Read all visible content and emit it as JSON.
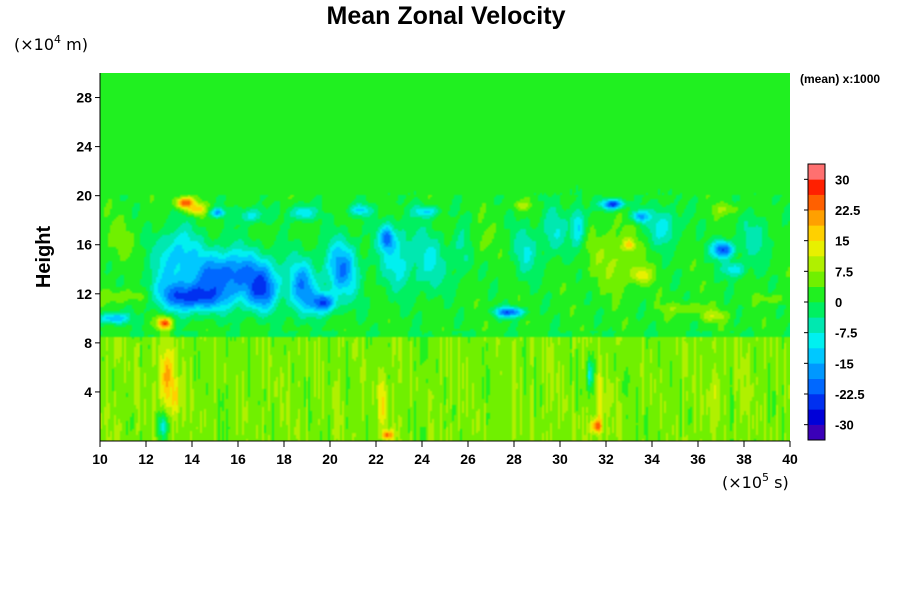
{
  "chart_data": {
    "type": "heatmap",
    "title": "Mean Zonal Velocity",
    "ylabel": "Height",
    "y_unit_prefix": "(×10",
    "y_unit_exp": "4",
    "y_unit_suffix": " m)",
    "x_unit_prefix": "(×10",
    "x_unit_exp": "5",
    "x_unit_suffix": " s)",
    "xlim": [
      10,
      40
    ],
    "ylim": [
      0,
      30
    ],
    "x_ticks": [
      "10",
      "12",
      "14",
      "16",
      "18",
      "20",
      "22",
      "24",
      "26",
      "28",
      "30",
      "32",
      "34",
      "36",
      "38",
      "40"
    ],
    "y_ticks": [
      "4",
      "8",
      "12",
      "16",
      "20",
      "24",
      "28"
    ],
    "colorbar": {
      "note": "(mean) x:1000",
      "range": [
        -33.75,
        33.75
      ],
      "labels": [
        "30",
        "22.5",
        "15",
        "7.5",
        "0",
        "-7.5",
        "-15",
        "-22.5",
        "-30"
      ],
      "levels": 18,
      "colors": [
        "#3a00b8",
        "#0000d8",
        "#0030f0",
        "#0068ff",
        "#0098ff",
        "#00c8ff",
        "#00f0f0",
        "#00e8b0",
        "#00f060",
        "#20f020",
        "#70f000",
        "#b0f000",
        "#e8f000",
        "#ffd000",
        "#ffa000",
        "#ff6000",
        "#ff2000",
        "#ff7070"
      ]
    },
    "background_value": 0.5,
    "features": [
      {
        "type": "band",
        "x": [
          10,
          40
        ],
        "y": [
          9,
          20
        ],
        "value": 1.5
      },
      {
        "type": "band",
        "x": [
          10,
          40
        ],
        "y": [
          0,
          8.5
        ],
        "value": 6
      },
      {
        "type": "blob",
        "x": 14,
        "y": 12,
        "rx": 1.8,
        "ry": 1.6,
        "value": -32
      },
      {
        "type": "blob",
        "x": 15.5,
        "y": 13.5,
        "rx": 2.4,
        "ry": 2.6,
        "value": -22
      },
      {
        "type": "blob",
        "x": 13.4,
        "y": 14.8,
        "rx": 1.2,
        "ry": 3.2,
        "value": -14
      },
      {
        "type": "blob",
        "x": 17,
        "y": 12.5,
        "rx": 0.9,
        "ry": 2.2,
        "value": -24
      },
      {
        "type": "blob",
        "x": 18.8,
        "y": 12.5,
        "rx": 0.8,
        "ry": 2.8,
        "value": -18
      },
      {
        "type": "blob",
        "x": 20.5,
        "y": 14,
        "rx": 0.9,
        "ry": 3,
        "value": -18
      },
      {
        "type": "blob",
        "x": 19.7,
        "y": 11.3,
        "rx": 0.7,
        "ry": 1,
        "value": -24
      },
      {
        "type": "blob",
        "x": 13.7,
        "y": 19.4,
        "rx": 0.5,
        "ry": 0.6,
        "value": 28
      },
      {
        "type": "blob",
        "x": 14.2,
        "y": 18.9,
        "rx": 0.5,
        "ry": 0.6,
        "value": 18
      },
      {
        "type": "blob",
        "x": 15.1,
        "y": 18.6,
        "rx": 0.4,
        "ry": 0.5,
        "value": -16
      },
      {
        "type": "blob",
        "x": 16.6,
        "y": 18.4,
        "rx": 0.7,
        "ry": 0.8,
        "value": -10
      },
      {
        "type": "blob",
        "x": 18.8,
        "y": 18.6,
        "rx": 0.7,
        "ry": 0.8,
        "value": -12
      },
      {
        "type": "blob",
        "x": 21.3,
        "y": 18.8,
        "rx": 0.6,
        "ry": 0.6,
        "value": -12
      },
      {
        "type": "blob",
        "x": 12.8,
        "y": 9.6,
        "rx": 0.4,
        "ry": 0.6,
        "value": 26
      },
      {
        "type": "blob",
        "x": 12.9,
        "y": 5,
        "rx": 0.35,
        "ry": 3.2,
        "value": 22
      },
      {
        "type": "blob",
        "x": 13.3,
        "y": 3.5,
        "rx": 0.25,
        "ry": 2,
        "value": 16
      },
      {
        "type": "blob",
        "x": 12.7,
        "y": 1.2,
        "rx": 0.3,
        "ry": 1.4,
        "value": -8
      },
      {
        "type": "blob",
        "x": 10.6,
        "y": 10,
        "rx": 0.8,
        "ry": 0.6,
        "value": -16
      },
      {
        "type": "blob",
        "x": 11,
        "y": 11.8,
        "rx": 1.2,
        "ry": 0.8,
        "value": 7
      },
      {
        "type": "blob",
        "x": 10.8,
        "y": 16.5,
        "rx": 1,
        "ry": 2.2,
        "value": 5
      },
      {
        "type": "blob",
        "x": 23,
        "y": 15,
        "rx": 1.2,
        "ry": 3.5,
        "value": -9
      },
      {
        "type": "blob",
        "x": 22.5,
        "y": 16.5,
        "rx": 0.4,
        "ry": 1.2,
        "value": -22
      },
      {
        "type": "blob",
        "x": 24.3,
        "y": 14.5,
        "rx": 0.9,
        "ry": 3,
        "value": -8
      },
      {
        "type": "blob",
        "x": 25.8,
        "y": 15.5,
        "rx": 0.8,
        "ry": 2.5,
        "value": -6
      },
      {
        "type": "blob",
        "x": 24.2,
        "y": 18.7,
        "rx": 0.7,
        "ry": 0.6,
        "value": -12
      },
      {
        "type": "blob",
        "x": 26.5,
        "y": 16.2,
        "rx": 0.6,
        "ry": 2.2,
        "value": 5
      },
      {
        "type": "blob",
        "x": 22.3,
        "y": 3.2,
        "rx": 0.25,
        "ry": 3,
        "value": 16
      },
      {
        "type": "blob",
        "x": 22.5,
        "y": 0.5,
        "rx": 0.3,
        "ry": 0.5,
        "value": 24
      },
      {
        "type": "blob",
        "x": 27.8,
        "y": 10.5,
        "rx": 0.8,
        "ry": 0.5,
        "value": -22
      },
      {
        "type": "blob",
        "x": 28.5,
        "y": 15.5,
        "rx": 0.7,
        "ry": 2.6,
        "value": -7
      },
      {
        "type": "blob",
        "x": 29.7,
        "y": 17,
        "rx": 0.8,
        "ry": 2.5,
        "value": -7
      },
      {
        "type": "blob",
        "x": 28.3,
        "y": 19.2,
        "rx": 0.5,
        "ry": 0.5,
        "value": 8
      },
      {
        "type": "blob",
        "x": 30.8,
        "y": 17.5,
        "rx": 0.4,
        "ry": 2,
        "value": -14
      },
      {
        "type": "blob",
        "x": 32.4,
        "y": 15,
        "rx": 1.4,
        "ry": 3.2,
        "value": 8
      },
      {
        "type": "blob",
        "x": 33.5,
        "y": 13.5,
        "rx": 0.6,
        "ry": 0.8,
        "value": 14
      },
      {
        "type": "blob",
        "x": 33,
        "y": 16,
        "rx": 0.3,
        "ry": 0.5,
        "value": 18
      },
      {
        "type": "blob",
        "x": 32.3,
        "y": 19.3,
        "rx": 0.6,
        "ry": 0.5,
        "value": -26
      },
      {
        "type": "blob",
        "x": 33.5,
        "y": 18.3,
        "rx": 0.5,
        "ry": 0.6,
        "value": -18
      },
      {
        "type": "blob",
        "x": 34.5,
        "y": 17.5,
        "rx": 0.9,
        "ry": 2,
        "value": -9
      },
      {
        "type": "blob",
        "x": 31.7,
        "y": 3,
        "rx": 0.3,
        "ry": 3,
        "value": 13
      },
      {
        "type": "blob",
        "x": 31.6,
        "y": 1.2,
        "rx": 0.3,
        "ry": 0.7,
        "value": 26
      },
      {
        "type": "blob",
        "x": 31.3,
        "y": 5.5,
        "rx": 0.2,
        "ry": 2,
        "value": -9
      },
      {
        "type": "blob",
        "x": 37.1,
        "y": 15.6,
        "rx": 0.6,
        "ry": 0.9,
        "value": -24
      },
      {
        "type": "blob",
        "x": 37.6,
        "y": 14,
        "rx": 0.6,
        "ry": 0.8,
        "value": -12
      },
      {
        "type": "blob",
        "x": 37.3,
        "y": 18.9,
        "rx": 0.8,
        "ry": 0.6,
        "value": 8
      },
      {
        "type": "blob",
        "x": 36.7,
        "y": 10.2,
        "rx": 0.8,
        "ry": 0.6,
        "value": 10
      },
      {
        "type": "blob",
        "x": 39.3,
        "y": 11.6,
        "rx": 0.8,
        "ry": 0.5,
        "value": 7
      },
      {
        "type": "blob",
        "x": 38.5,
        "y": 16.5,
        "rx": 0.9,
        "ry": 2.6,
        "value": -5
      },
      {
        "type": "blob",
        "x": 35.4,
        "y": 10.8,
        "rx": 1.2,
        "ry": 0.6,
        "value": 8
      },
      {
        "type": "blob",
        "x": 36.8,
        "y": 3.8,
        "rx": 0.3,
        "ry": 3.2,
        "value": 11
      }
    ]
  }
}
